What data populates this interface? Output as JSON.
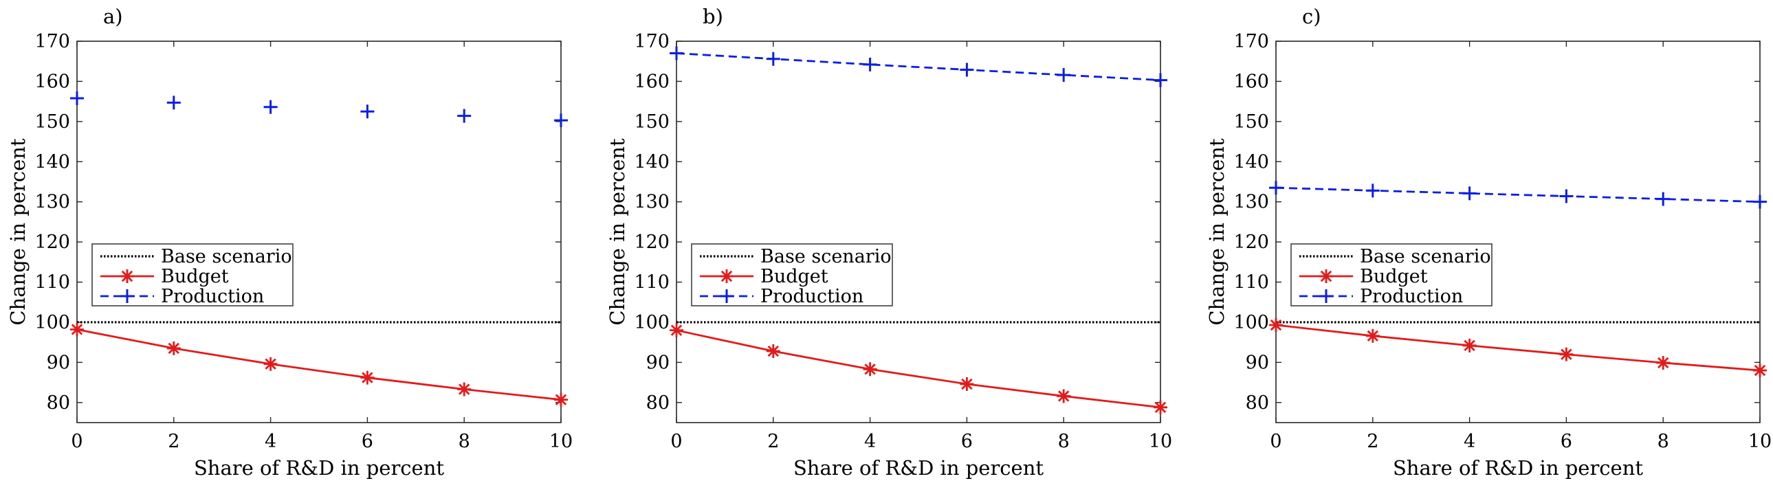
{
  "chart_data": [
    {
      "type": "line",
      "panel_label": "a)",
      "xlabel": "Share of R&D in percent",
      "ylabel": "Change in percent",
      "xlim": [
        0,
        10
      ],
      "ylim": [
        75,
        170
      ],
      "xticks": [
        0,
        2,
        4,
        6,
        8,
        10
      ],
      "yticks": [
        80,
        90,
        100,
        110,
        120,
        130,
        140,
        150,
        160,
        170
      ],
      "grid": false,
      "legend_position": "middle-left",
      "series": [
        {
          "name": "Base scenario",
          "style": "dotted",
          "color": "#000000",
          "marker": "none",
          "x": [
            0,
            10
          ],
          "y": [
            100,
            100
          ]
        },
        {
          "name": "Budget",
          "style": "solid",
          "color": "#e41a1a",
          "marker": "asterisk",
          "x": [
            0,
            2,
            4,
            6,
            8,
            10
          ],
          "y": [
            98.2,
            93.5,
            89.6,
            86.2,
            83.3,
            80.7
          ]
        },
        {
          "name": "Production",
          "style": "none",
          "color": "#0a1ee6",
          "marker": "plus",
          "x": [
            0,
            2,
            4,
            6,
            8,
            10
          ],
          "y": [
            155.8,
            154.7,
            153.6,
            152.5,
            151.4,
            150.3
          ]
        }
      ]
    },
    {
      "type": "line",
      "panel_label": "b)",
      "xlabel": "Share of R&D in percent",
      "ylabel": "Change in percent",
      "xlim": [
        0,
        10
      ],
      "ylim": [
        75,
        170
      ],
      "xticks": [
        0,
        2,
        4,
        6,
        8,
        10
      ],
      "yticks": [
        80,
        90,
        100,
        110,
        120,
        130,
        140,
        150,
        160,
        170
      ],
      "grid": false,
      "legend_position": "middle-left",
      "series": [
        {
          "name": "Base scenario",
          "style": "dotted",
          "color": "#000000",
          "marker": "none",
          "x": [
            0,
            10
          ],
          "y": [
            100,
            100
          ]
        },
        {
          "name": "Budget",
          "style": "solid",
          "color": "#e41a1a",
          "marker": "asterisk",
          "x": [
            0,
            2,
            4,
            6,
            8,
            10
          ],
          "y": [
            98.0,
            92.8,
            88.3,
            84.6,
            81.6,
            78.8
          ]
        },
        {
          "name": "Production",
          "style": "dashed",
          "color": "#0a1ee6",
          "marker": "plus",
          "x": [
            0,
            2,
            4,
            6,
            8,
            10
          ],
          "y": [
            167.0,
            165.6,
            164.2,
            162.9,
            161.6,
            160.3
          ]
        }
      ]
    },
    {
      "type": "line",
      "panel_label": "c)",
      "xlabel": "Share of R&D in percent",
      "ylabel": "Change in percent",
      "xlim": [
        0,
        10
      ],
      "ylim": [
        75,
        170
      ],
      "xticks": [
        0,
        2,
        4,
        6,
        8,
        10
      ],
      "yticks": [
        80,
        90,
        100,
        110,
        120,
        130,
        140,
        150,
        160,
        170
      ],
      "grid": false,
      "legend_position": "middle-left",
      "series": [
        {
          "name": "Base scenario",
          "style": "dotted",
          "color": "#000000",
          "marker": "none",
          "x": [
            0,
            10
          ],
          "y": [
            100,
            100
          ]
        },
        {
          "name": "Budget",
          "style": "solid",
          "color": "#e41a1a",
          "marker": "asterisk",
          "x": [
            0,
            2,
            4,
            6,
            8,
            10
          ],
          "y": [
            99.3,
            96.6,
            94.2,
            92.0,
            89.9,
            88.0
          ]
        },
        {
          "name": "Production",
          "style": "dashed",
          "color": "#0a1ee6",
          "marker": "plus",
          "x": [
            0,
            2,
            4,
            6,
            8,
            10
          ],
          "y": [
            133.5,
            132.8,
            132.1,
            131.4,
            130.7,
            130.0
          ]
        }
      ]
    }
  ]
}
